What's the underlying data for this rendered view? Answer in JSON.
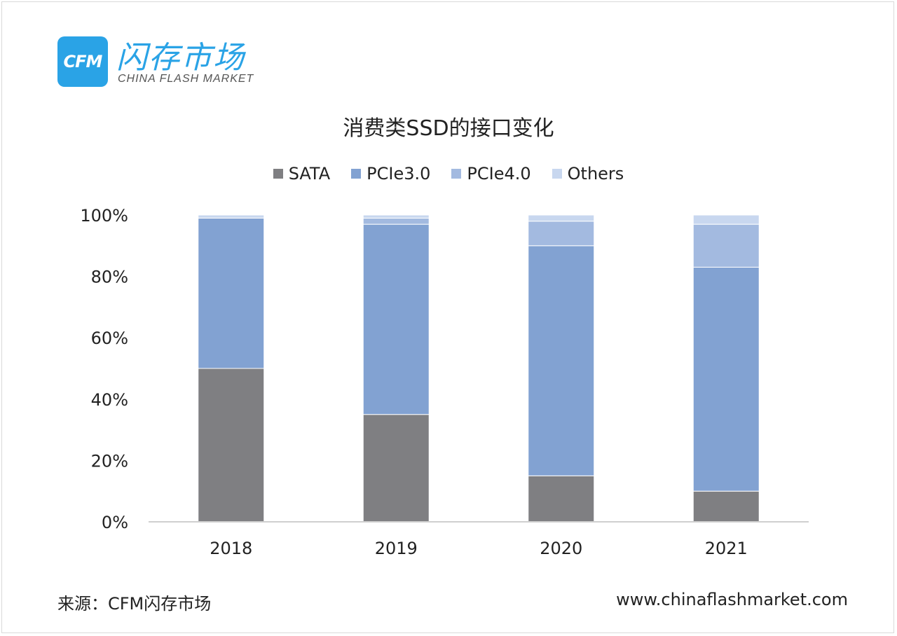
{
  "logo": {
    "box_text": "CFM",
    "name_cn": "闪存市场",
    "name_en": "CHINA FLASH MARKET"
  },
  "footer": {
    "source": "来源：CFM闪存市场",
    "website": "www.chinaflashmarket.com"
  },
  "colors": {
    "SATA": "#7f7f82",
    "PCIe3.0": "#82a2d2",
    "PCIe4.0": "#a3bae0",
    "Others": "#c8d7ef",
    "brand": "#2aa3e6"
  },
  "chart_data": {
    "type": "bar",
    "stacked": true,
    "title": "消费类SSD的接口变化",
    "categories": [
      "2018",
      "2019",
      "2020",
      "2021"
    ],
    "series": [
      {
        "name": "SATA",
        "values": [
          50,
          35,
          15,
          10
        ]
      },
      {
        "name": "PCIe3.0",
        "values": [
          49,
          62,
          75,
          73
        ]
      },
      {
        "name": "PCIe4.0",
        "values": [
          0,
          2,
          8,
          14
        ]
      },
      {
        "name": "Others",
        "values": [
          1,
          1,
          2,
          3
        ]
      }
    ],
    "yticks": [
      "0%",
      "20%",
      "40%",
      "60%",
      "80%",
      "100%"
    ],
    "ylim": [
      0,
      100
    ],
    "legend": "top-center",
    "grid": false
  }
}
